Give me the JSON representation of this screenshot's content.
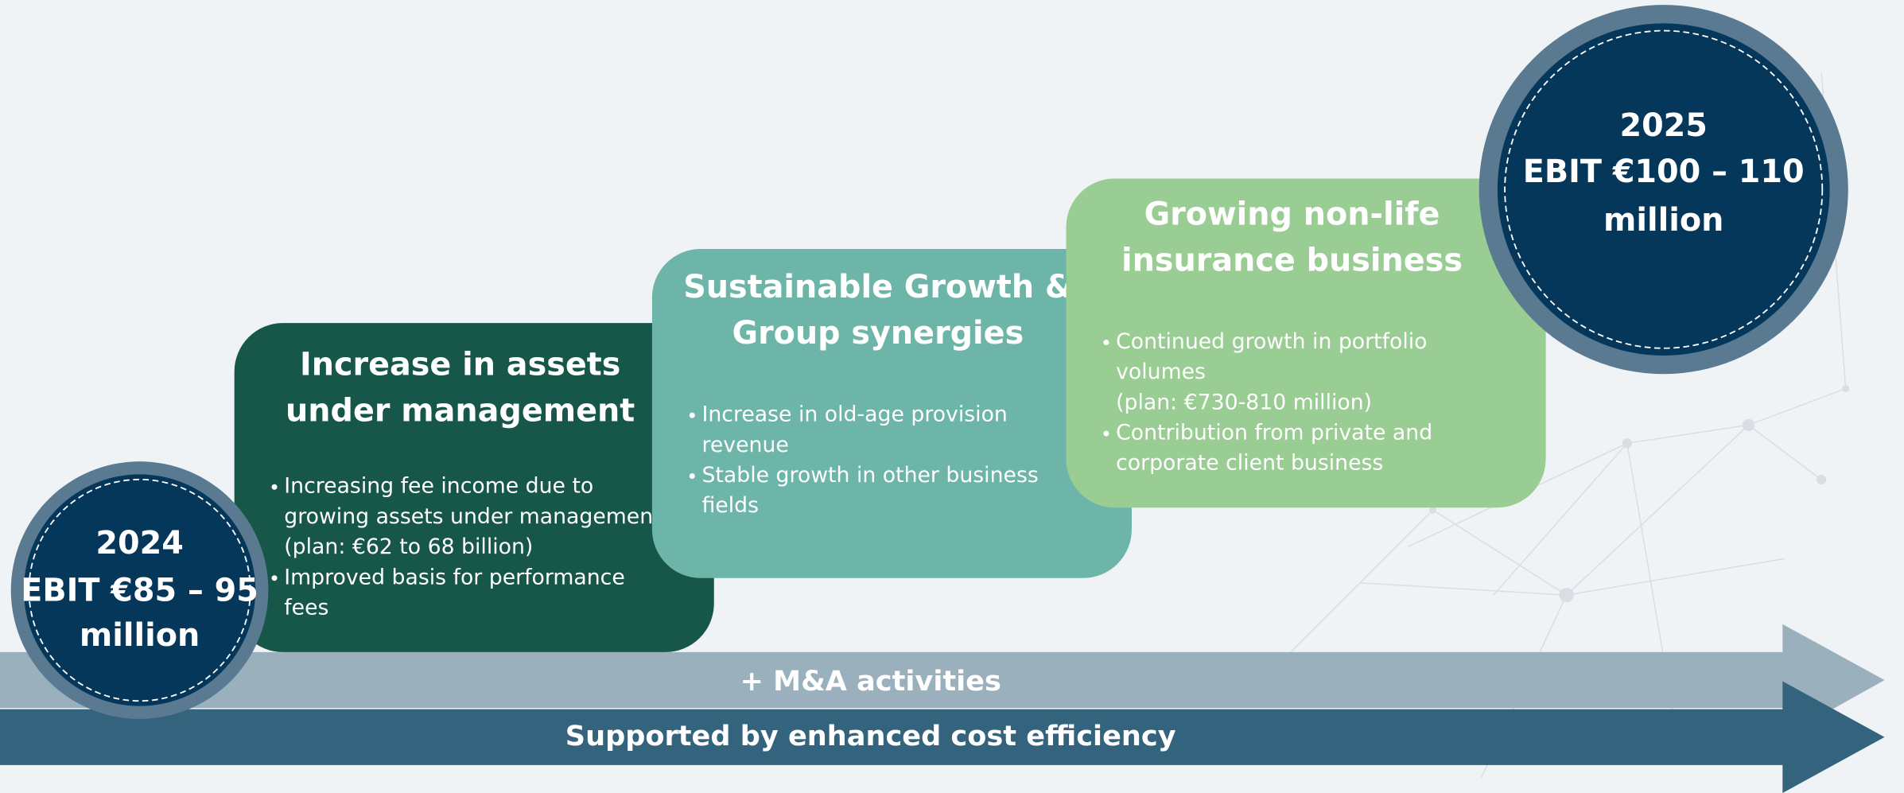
{
  "start": {
    "lines": [
      "2024",
      "EBIT €85 – 95",
      "million"
    ]
  },
  "end": {
    "lines": [
      "2025",
      "EBIT €100 – 110",
      "million"
    ]
  },
  "steps": [
    {
      "title": [
        "Increase in assets",
        "under management"
      ],
      "bullets": [
        [
          "Increasing fee income due to",
          "growing assets under management",
          "(plan: €62 to 68 billion)"
        ],
        [
          "Improved basis for performance",
          "fees"
        ]
      ]
    },
    {
      "title": [
        "Sustainable Growth &",
        "Group synergies"
      ],
      "bullets": [
        [
          "Increase in old-age provision",
          "revenue"
        ],
        [
          "Stable growth in other business",
          "fields"
        ]
      ]
    },
    {
      "title": [
        "Growing non-life",
        "insurance business"
      ],
      "bullets": [
        [
          "Continued growth in portfolio",
          "volumes",
          "(plan: €730-810 million)"
        ],
        [
          "Contribution from private and",
          "corporate client business"
        ]
      ]
    }
  ],
  "arrows": [
    "+ M&A activities",
    "Supported by enhanced cost efficiency"
  ]
}
